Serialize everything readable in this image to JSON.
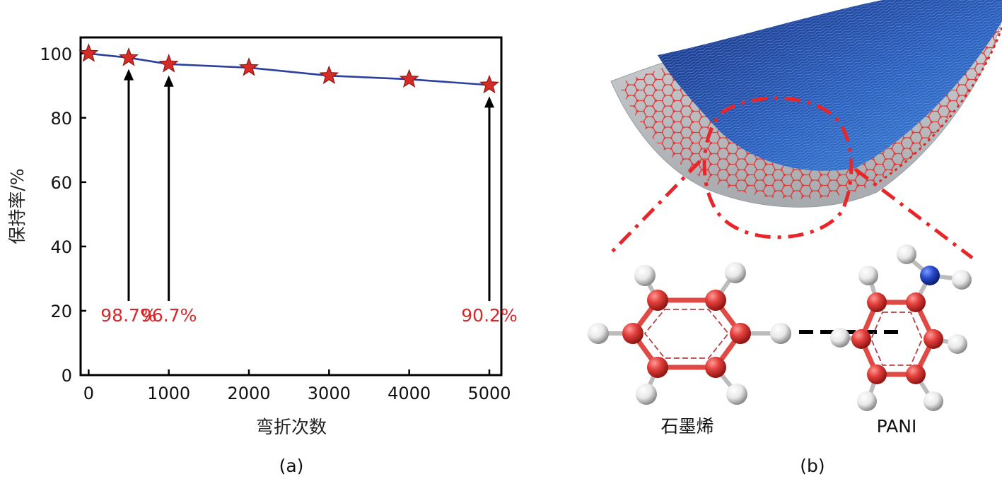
{
  "panels": [
    {
      "label": "(a)"
    },
    {
      "label": "(b)"
    }
  ],
  "chart_data": {
    "type": "line",
    "xlabel": "弯折次数",
    "ylabel": "保持率/%",
    "xlim": [
      -100,
      5150
    ],
    "ylim": [
      0,
      105
    ],
    "xticks": [
      0,
      1000,
      2000,
      3000,
      4000,
      5000
    ],
    "yticks": [
      0,
      20,
      40,
      60,
      80,
      100
    ],
    "grid": false,
    "marker": "star",
    "series": [
      {
        "x": [
          0,
          500,
          1000,
          2000,
          3000,
          4000,
          5000
        ],
        "y": [
          100,
          98.7,
          96.7,
          95.6,
          93.1,
          92.0,
          90.2
        ]
      }
    ],
    "annotations": [
      {
        "x": 500,
        "text": "98.7%"
      },
      {
        "x": 1000,
        "text": "96.7%"
      },
      {
        "x": 5000,
        "text": "90.2%"
      }
    ]
  },
  "diagram": {
    "molecule_labels": [
      "石墨烯",
      "PANI"
    ]
  },
  "colors": {
    "line": "#2c3f9f",
    "marker_fill": "#d62b26",
    "marker_stroke": "#8a1a16",
    "annotation": "#d6282a",
    "axis": "#000000",
    "graphene": "#e0393a",
    "blue_sheet": "#1e4fa8",
    "grey_sheet": "#b9bcc0",
    "hydrogen": "#f0f0f0",
    "nitrogen": "#1f3fb0"
  }
}
